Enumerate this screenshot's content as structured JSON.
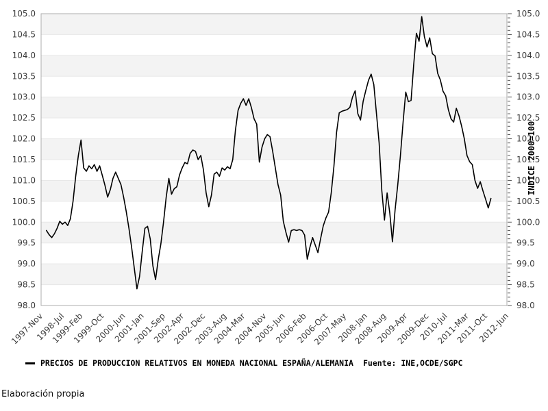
{
  "page": {
    "footer": "Elaboración propia"
  },
  "chart_data": {
    "type": "line",
    "title": "",
    "legend_label": "PRECIOS DE PRODUCCION RELATIVOS EN MONEDA NACIONAL ESPAÑA/ALEMANIA",
    "source_label": "Fuente: INE,OCDE/SGPC",
    "right_axis_label": "INDICE 2000=100",
    "line_color": "#000000",
    "band_color": "#f3f3f3",
    "grid_color": "#e7e7e7",
    "border_color": "#adadad",
    "tick_color": "#555555",
    "ylim": [
      98.0,
      105.0
    ],
    "y_tick_step": 0.5,
    "y_minor_tick_step": 0.1,
    "grid": "alternating-horizontal-bands",
    "legend_position": "bottom",
    "y_tick_labels": [
      "98.0",
      "98.5",
      "99.0",
      "99.5",
      "100.0",
      "100.5",
      "101.0",
      "101.5",
      "102.0",
      "102.5",
      "103.0",
      "103.5",
      "104.0",
      "104.5",
      "105.0"
    ],
    "x_axis_total_months": 175,
    "x_ticks": [
      {
        "label": "1997-Nov",
        "month": 0
      },
      {
        "label": "1998-Jul",
        "month": 8
      },
      {
        "label": "1999-Feb",
        "month": 15
      },
      {
        "label": "1999-Oct",
        "month": 23
      },
      {
        "label": "2000-Jun",
        "month": 31
      },
      {
        "label": "2001-Jan",
        "month": 38
      },
      {
        "label": "2001-Sep",
        "month": 46
      },
      {
        "label": "2002-Apr",
        "month": 53
      },
      {
        "label": "2002-Dec",
        "month": 61
      },
      {
        "label": "2003-Aug",
        "month": 69
      },
      {
        "label": "2004-Mar",
        "month": 76
      },
      {
        "label": "2004-Nov",
        "month": 84
      },
      {
        "label": "2005-Jun",
        "month": 91
      },
      {
        "label": "2006-Feb",
        "month": 99
      },
      {
        "label": "2006-Oct",
        "month": 107
      },
      {
        "label": "2007-May",
        "month": 114
      },
      {
        "label": "2008-Jan",
        "month": 122
      },
      {
        "label": "2008-Aug",
        "month": 129
      },
      {
        "label": "2009-Apr",
        "month": 137
      },
      {
        "label": "2009-Dec",
        "month": 145
      },
      {
        "label": "2010-Jul",
        "month": 152
      },
      {
        "label": "2011-Mar",
        "month": 160
      },
      {
        "label": "2011-Oct",
        "month": 167
      },
      {
        "label": "2012-Jun",
        "month": 175
      }
    ],
    "series": {
      "name": "PRECIOS DE PRODUCCION RELATIVOS EN MONEDA NACIONAL ESPAÑA/ALEMANIA",
      "frequency": "monthly",
      "start": "1998-01",
      "end": "2011-12",
      "start_month_offset": 2,
      "values": [
        99.8,
        99.7,
        99.63,
        99.72,
        99.85,
        100.02,
        99.95,
        100.0,
        99.92,
        100.08,
        100.5,
        101.1,
        101.6,
        101.97,
        101.3,
        101.22,
        101.35,
        101.28,
        101.38,
        101.22,
        101.35,
        101.12,
        100.88,
        100.6,
        100.78,
        101.05,
        101.2,
        101.05,
        100.9,
        100.6,
        100.25,
        99.85,
        99.4,
        98.9,
        98.4,
        98.7,
        99.3,
        99.85,
        99.9,
        99.6,
        98.95,
        98.62,
        99.1,
        99.48,
        100.0,
        100.6,
        101.05,
        100.67,
        100.8,
        100.85,
        101.13,
        101.3,
        101.43,
        101.4,
        101.65,
        101.73,
        101.7,
        101.5,
        101.6,
        101.25,
        100.7,
        100.37,
        100.65,
        101.15,
        101.2,
        101.1,
        101.3,
        101.25,
        101.33,
        101.28,
        101.5,
        102.2,
        102.68,
        102.85,
        102.96,
        102.8,
        102.96,
        102.75,
        102.48,
        102.35,
        101.44,
        101.8,
        102.0,
        102.1,
        102.05,
        101.7,
        101.3,
        100.9,
        100.65,
        100.02,
        99.75,
        99.52,
        99.8,
        99.82,
        99.8,
        99.82,
        99.8,
        99.69,
        99.11,
        99.4,
        99.63,
        99.45,
        99.27,
        99.6,
        99.91,
        100.1,
        100.24,
        100.7,
        101.33,
        102.15,
        102.62,
        102.66,
        102.68,
        102.7,
        102.75,
        103.0,
        103.15,
        102.6,
        102.45,
        102.9,
        103.16,
        103.4,
        103.55,
        103.3,
        102.6,
        101.9,
        100.76,
        100.05,
        100.7,
        100.22,
        99.53,
        100.3,
        100.9,
        101.6,
        102.4,
        103.12,
        102.89,
        102.92,
        103.79,
        104.53,
        104.34,
        104.93,
        104.45,
        104.2,
        104.42,
        104.04,
        103.99,
        103.57,
        103.41,
        103.14,
        103.03,
        102.7,
        102.48,
        102.4,
        102.73,
        102.55,
        102.3,
        102.0,
        101.6,
        101.45,
        101.38,
        101.0,
        100.81,
        100.97,
        100.75,
        100.55,
        100.34,
        100.57
      ]
    }
  }
}
